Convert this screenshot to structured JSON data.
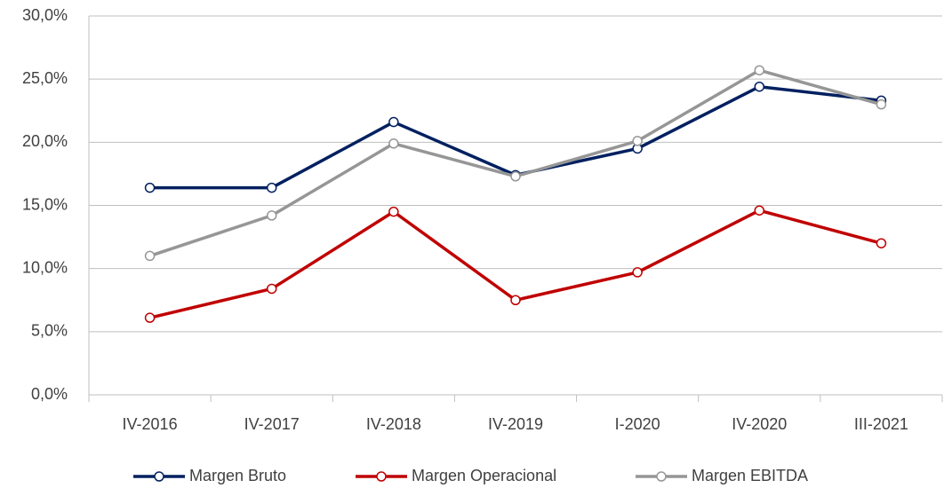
{
  "chart_data": {
    "type": "line",
    "categories": [
      "IV-2016",
      "IV-2017",
      "IV-2018",
      "IV-2019",
      "I-2020",
      "IV-2020",
      "III-2021"
    ],
    "series": [
      {
        "name": "Margen Bruto",
        "color": "#002060",
        "values": [
          16.4,
          16.4,
          21.6,
          17.4,
          19.5,
          24.4,
          23.3
        ]
      },
      {
        "name": "Margen Operacional",
        "color": "#c00000",
        "values": [
          6.1,
          8.4,
          14.5,
          7.5,
          9.7,
          14.6,
          12.0
        ]
      },
      {
        "name": "Margen EBITDA",
        "color": "#969696",
        "values": [
          11.0,
          14.2,
          19.9,
          17.3,
          20.1,
          25.7,
          23.0
        ]
      }
    ],
    "ylim": [
      0,
      30
    ],
    "yticks": [
      {
        "value": 0,
        "label": "0,0%"
      },
      {
        "value": 5,
        "label": "5,0%"
      },
      {
        "value": 10,
        "label": "10,0%"
      },
      {
        "value": 15,
        "label": "15,0%"
      },
      {
        "value": 20,
        "label": "20,0%"
      },
      {
        "value": 25,
        "label": "25,0%"
      },
      {
        "value": 30,
        "label": "30,0%"
      }
    ],
    "grid": true,
    "legend": "bottom"
  }
}
